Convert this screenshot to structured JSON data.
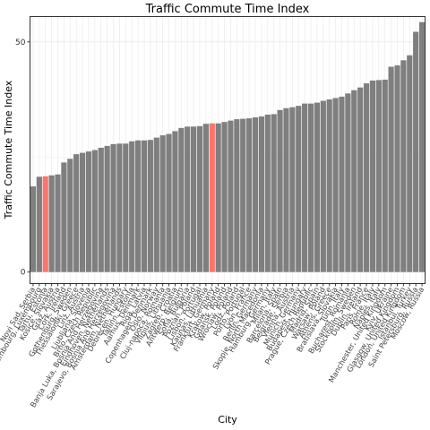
{
  "chart_data": {
    "type": "bar",
    "title": "Traffic Commute Time Index",
    "xlabel": "City",
    "ylabel": "Traffic Commute Time Index",
    "ylim": [
      -2.5,
      55.5
    ],
    "yticks": [
      0,
      50
    ],
    "grid": true,
    "colors": {
      "default": "#7f7f7f",
      "highlight": "#f8766d",
      "panel_border": "#333333",
      "grid": "#ebebeb"
    },
    "bars": [
      {
        "label": "Novi Sad, Serbia",
        "value": 18.6,
        "highlight": false
      },
      {
        "label": "Luxembourg, Luxembourg",
        "value": 20.7,
        "highlight": false
      },
      {
        "label": "Tartu, Estonia",
        "value": 20.8,
        "highlight": true
      },
      {
        "label": "Kosice, Slovakia",
        "value": 21.0,
        "highlight": false
      },
      {
        "label": "Graz, Austria",
        "value": 21.2,
        "highlight": false
      },
      {
        "label": "Cork, Ireland",
        "value": 23.8,
        "highlight": false
      },
      {
        "label": "Gothenburg, Sweden",
        "value": 24.6,
        "highlight": false
      },
      {
        "label": "Thessaloniki, Greece",
        "value": 25.6,
        "highlight": false
      },
      {
        "label": "Linz, Austria",
        "value": 25.9,
        "highlight": false
      },
      {
        "label": "Ljubljana, Slovenia",
        "value": 26.2,
        "highlight": false
      },
      {
        "label": "Brno, Czech Republic",
        "value": 26.5,
        "highlight": false
      },
      {
        "label": "Banja Luka, Bosnia And Herzegovina",
        "value": 27.0,
        "highlight": false
      },
      {
        "label": "Eindhoven, Netherlands",
        "value": 27.4,
        "highlight": false
      },
      {
        "label": "Sarajevo, Bosnia And Herzegovina",
        "value": 27.8,
        "highlight": false
      },
      {
        "label": "Amsterdam, Netherlands",
        "value": 27.9,
        "highlight": false
      },
      {
        "label": "Debrecen, Hungary",
        "value": 27.9,
        "highlight": false
      },
      {
        "label": "Tallinn, Estonia",
        "value": 28.4,
        "highlight": false
      },
      {
        "label": "Aarhus, Denmark",
        "value": 28.6,
        "highlight": false
      },
      {
        "label": "Riga, Latvia",
        "value": 28.6,
        "highlight": false
      },
      {
        "label": "Copenhagen, Denmark",
        "value": 28.7,
        "highlight": false
      },
      {
        "label": "Oslo, Norway",
        "value": 29.2,
        "highlight": false
      },
      {
        "label": "Cluj-napoca, Romania",
        "value": 29.7,
        "highlight": false
      },
      {
        "label": "Vilnius, Lithuania",
        "value": 30.0,
        "highlight": false
      },
      {
        "label": "Zagreb, Croatia",
        "value": 30.6,
        "highlight": false
      },
      {
        "label": "Antwerp, Belgium",
        "value": 31.3,
        "highlight": false
      },
      {
        "label": "Sofia, Bulgaria",
        "value": 31.6,
        "highlight": false
      },
      {
        "label": "Poznan, Poland",
        "value": 31.6,
        "highlight": false
      },
      {
        "label": "Lisbon, Portugal",
        "value": 31.7,
        "highlight": false
      },
      {
        "label": "Kaunas, Lithuania",
        "value": 32.2,
        "highlight": false
      },
      {
        "label": "Frankfurt, Germany",
        "value": 32.3,
        "highlight": true
      },
      {
        "label": "Krakow, Poland",
        "value": 32.3,
        "highlight": false
      },
      {
        "label": "Gdansk, Poland",
        "value": 32.6,
        "highlight": false
      },
      {
        "label": "Wroclaw, Poland",
        "value": 32.9,
        "highlight": false
      },
      {
        "label": "Lodz, Poland",
        "value": 33.2,
        "highlight": false
      },
      {
        "label": "Porto, Portugal",
        "value": 33.3,
        "highlight": false
      },
      {
        "label": "Lyon, France",
        "value": 33.4,
        "highlight": false
      },
      {
        "label": "Berlin, Germany",
        "value": 33.6,
        "highlight": false
      },
      {
        "label": "Skopje, North Macedonia",
        "value": 33.8,
        "highlight": false
      },
      {
        "label": "Hamburg, Germany",
        "value": 34.2,
        "highlight": false
      },
      {
        "label": "Milan, Italy",
        "value": 34.3,
        "highlight": false
      },
      {
        "label": "Barcelona, Spain",
        "value": 35.2,
        "highlight": false
      },
      {
        "label": "Belgrade, Serbia",
        "value": 35.6,
        "highlight": false
      },
      {
        "label": "Vienna, Austria",
        "value": 35.8,
        "highlight": false
      },
      {
        "label": "Munich, Germany",
        "value": 36.1,
        "highlight": false
      },
      {
        "label": "Budapest, Hungary",
        "value": 36.6,
        "highlight": false
      },
      {
        "label": "Prague, Czech Republic",
        "value": 36.6,
        "highlight": false
      },
      {
        "label": "Madrid, Spain",
        "value": 36.8,
        "highlight": false
      },
      {
        "label": "Warsaw, Poland",
        "value": 37.2,
        "highlight": false
      },
      {
        "label": "Athens, Greece",
        "value": 37.5,
        "highlight": false
      },
      {
        "label": "Bratislava, Slovakia",
        "value": 37.8,
        "highlight": false
      },
      {
        "label": "Turin, Italy",
        "value": 38.1,
        "highlight": false
      },
      {
        "label": "Bucharest, Romania",
        "value": 38.8,
        "highlight": false
      },
      {
        "label": "Stockholm, Sweden",
        "value": 39.5,
        "highlight": false
      },
      {
        "label": "Dublin, Ireland",
        "value": 40.1,
        "highlight": false
      },
      {
        "label": "Paris, France",
        "value": 41.0,
        "highlight": false
      },
      {
        "label": "Rome, Italy",
        "value": 41.6,
        "highlight": false
      },
      {
        "label": "Naples, Italy",
        "value": 41.7,
        "highlight": false
      },
      {
        "label": "Manchester, United Kingdom",
        "value": 41.8,
        "highlight": false
      },
      {
        "label": "Kyiv, Ukraine",
        "value": 44.6,
        "highlight": false
      },
      {
        "label": "Glasgow, United Kingdom",
        "value": 44.9,
        "highlight": false
      },
      {
        "label": "London, United Kingdom",
        "value": 46.0,
        "highlight": false
      },
      {
        "label": "Istanbul, Turkey",
        "value": 47.1,
        "highlight": false
      },
      {
        "label": "Saint Petersburg, Russia",
        "value": 52.2,
        "highlight": false
      },
      {
        "label": "Moscow, Russia",
        "value": 54.3,
        "highlight": false
      }
    ]
  }
}
